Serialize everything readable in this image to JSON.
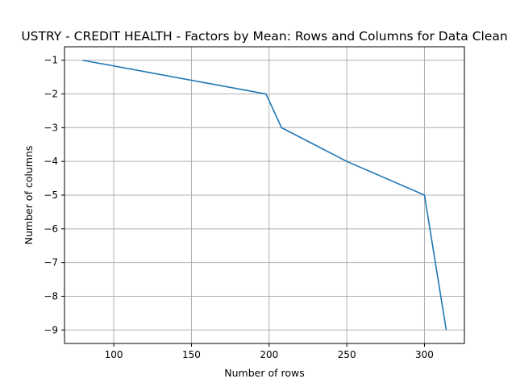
{
  "chart_data": {
    "type": "line",
    "title": "USTRY - CREDIT HEALTH - Factors by Mean: Rows and Columns for Data Clean",
    "xlabel": "Number of rows",
    "ylabel": "Number of columns",
    "xlim": [
      68.3,
      325.7
    ],
    "ylim": [
      -9.4,
      -0.6
    ],
    "xticks": [
      100,
      150,
      200,
      250,
      300
    ],
    "xtick_labels": [
      "100",
      "150",
      "200",
      "250",
      "300"
    ],
    "yticks": [
      -1,
      -2,
      -3,
      -4,
      -5,
      -6,
      -7,
      -8,
      -9
    ],
    "ytick_labels": [
      "−1",
      "−2",
      "−3",
      "−4",
      "−5",
      "−6",
      "−7",
      "−8",
      "−9"
    ],
    "grid": true,
    "series": [
      {
        "color": "#1f77b4",
        "x": [
          80,
          198,
          208,
          250,
          300,
          314
        ],
        "y": [
          -1,
          -2,
          -3,
          -4,
          -5,
          -9
        ]
      }
    ]
  }
}
